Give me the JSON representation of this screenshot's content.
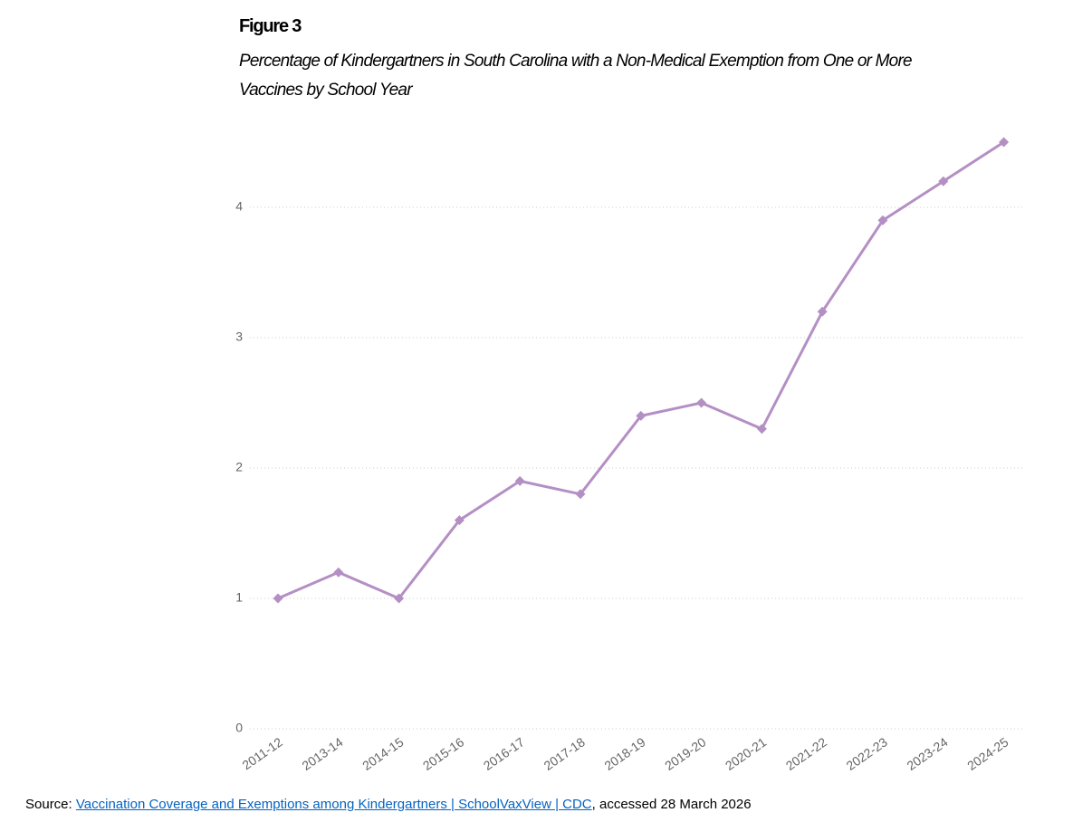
{
  "chart_data": {
    "type": "line",
    "figure_label": "Figure 3",
    "title": "Percentage of Kindergartners in South Carolina with a Non-Medical Exemption from One or More Vaccines by School Year",
    "categories": [
      "2011-12",
      "2013-14",
      "2014-15",
      "2015-16",
      "2016-17",
      "2017-18",
      "2018-19",
      "2019-20",
      "2020-21",
      "2021-22",
      "2022-23",
      "2023-24",
      "2024-25"
    ],
    "series": [
      {
        "name": "South Carolina",
        "color": "#b48fc4",
        "values": [
          1.0,
          1.2,
          1.0,
          1.6,
          1.9,
          1.8,
          2.4,
          2.5,
          2.3,
          3.2,
          3.9,
          4.2,
          4.5
        ]
      }
    ],
    "ylim": [
      0,
      4.5
    ],
    "yticks": [
      0,
      1,
      2,
      3,
      4
    ],
    "grid": true,
    "source": {
      "label": "Source:",
      "link": "Vaccination Coverage and Exemptions among Kindergartners | SchoolVaxView | CDC",
      "suffix": ", accessed 28 March 2026"
    }
  }
}
